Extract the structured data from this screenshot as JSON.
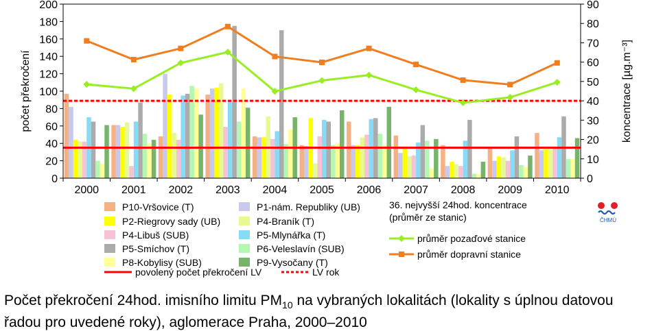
{
  "chart_data": {
    "type": "bar",
    "categories": [
      "2000",
      "2001",
      "2002",
      "2003",
      "2004",
      "2005",
      "2006",
      "2007",
      "2008",
      "2009",
      "2010"
    ],
    "ylabel": "počet překročení",
    "y2label": "koncentrace [µg.m⁻³]",
    "ylim": [
      0,
      200
    ],
    "y2lim": [
      0,
      90
    ],
    "yticks": [
      "0",
      "20",
      "40",
      "60",
      "80",
      "100",
      "120",
      "140",
      "160",
      "180",
      "200"
    ],
    "y2ticks": [
      "0",
      "10",
      "20",
      "30",
      "40",
      "50",
      "60",
      "70",
      "80",
      "90"
    ],
    "series": [
      {
        "name": "P10-Vršovice (T)",
        "color": "#f4b183",
        "values": [
          97,
          61,
          48,
          96,
          48,
          38,
          65,
          49,
          38,
          34,
          52
        ]
      },
      {
        "name": "P1-nám. Republiky (UB)",
        "color": "#c9c9ee",
        "values": [
          82,
          61,
          120,
          103,
          47,
          37,
          38,
          29,
          14,
          20,
          32
        ]
      },
      {
        "name": "P2-Riegrovy sady (UB)",
        "color": "#ffff00",
        "values": [
          44,
          59,
          96,
          104,
          47,
          69,
          38,
          34,
          19,
          25,
          33
        ]
      },
      {
        "name": "P4-Braník (T)",
        "color": "#e6f993",
        "values": [
          42,
          64,
          52,
          109,
          71,
          17,
          47,
          25,
          16,
          24,
          33
        ]
      },
      {
        "name": "P4-Libuš (SUB)",
        "color": "#f5c2d6",
        "values": [
          42,
          14,
          44,
          59,
          45,
          48,
          50,
          26,
          14,
          20,
          34
        ]
      },
      {
        "name": "P5-Mlynářka (T)",
        "color": "#88daf5",
        "values": [
          70,
          65,
          95,
          88,
          54,
          67,
          68,
          41,
          43,
          32,
          47
        ]
      },
      {
        "name": "P5-Smíchov (T)",
        "color": "#ababab",
        "values": [
          65,
          87,
          97,
          175,
          170,
          65,
          69,
          61,
          67,
          48,
          71
        ]
      },
      {
        "name": "P6-Veleslavín (SUB)",
        "color": "#b3f7b3",
        "values": [
          20,
          51,
          106,
          65,
          39,
          38,
          51,
          43,
          5,
          15,
          22
        ]
      },
      {
        "name": "P8-Kobylisy (SUB)",
        "color": "#ffff99",
        "values": [
          17,
          40,
          103,
          103,
          56,
          40,
          38,
          11,
          5,
          13,
          22
        ]
      },
      {
        "name": "P9-Vysočany (T)",
        "color": "#77b36b",
        "values": [
          61,
          44,
          73,
          81,
          70,
          78,
          82,
          45,
          19,
          26,
          46
        ]
      }
    ],
    "lines": [
      {
        "name": "průměr pozaďové stanice",
        "color": "#99ee22",
        "marker": "diamond",
        "values": [
          48.5,
          46.3,
          59.6,
          65.2,
          44.9,
          50.5,
          53.3,
          45.7,
          39.0,
          41.8,
          49.6
        ]
      },
      {
        "name": "průměr dopravní stanice",
        "color": "#f07d1e",
        "marker": "square",
        "values": [
          71.0,
          61.3,
          67.1,
          78.4,
          62.9,
          59.9,
          67.1,
          58.8,
          50.7,
          48.4,
          59.6
        ]
      }
    ],
    "reference_lines": [
      {
        "name": "povolený počet překročení LV",
        "value": 35,
        "axis": "left",
        "color": "#ff0000",
        "style": "solid"
      },
      {
        "name": "LV rok",
        "value": 40,
        "axis": "right",
        "color": "#ff0000",
        "style": "dashed"
      }
    ],
    "lines_legend_title": "36. nejvyšší 24hod. koncentrace (průměr ze stanic)",
    "grid": false
  },
  "caption": {
    "part1": "Počet překročení 24hod. imisního limitu PM",
    "sub": "10",
    "part2": " na vybraných lokalitách (lokality s úplnou datovou řadou pro uvedené roky), aglomerace Praha, 2000–2010"
  },
  "logo": {
    "text": "ČHMÚ",
    "colors": [
      "#e41e26",
      "#1f5aa6"
    ]
  }
}
